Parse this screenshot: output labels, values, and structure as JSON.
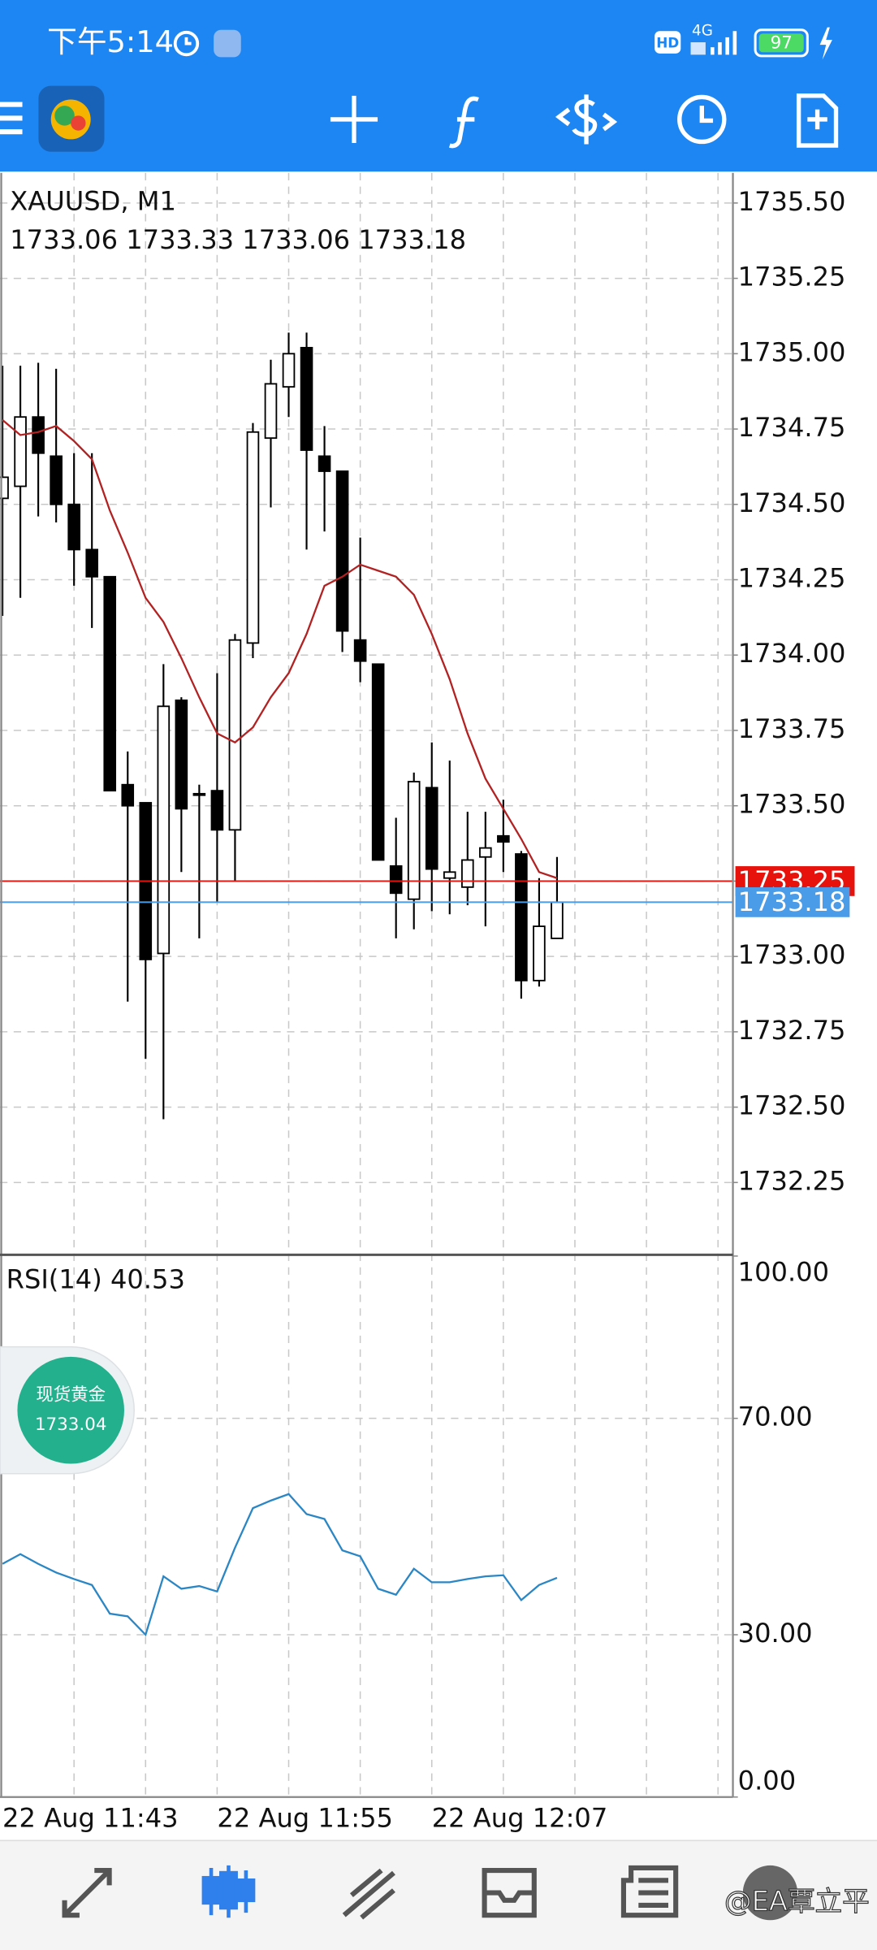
{
  "status_bar": {
    "time": "下午5:14",
    "hd": "HD",
    "network": "4G",
    "battery": 97
  },
  "chart_data": [
    {
      "type": "candlestick",
      "title": "XAUUSD, M1",
      "subtitle": "1733.06 1733.33 1733.06 1733.18",
      "categories": [
        "22 Aug 11:43",
        null,
        null,
        null,
        null,
        null,
        null,
        null,
        null,
        null,
        null,
        null,
        "22 Aug 11:55",
        null,
        null,
        null,
        null,
        null,
        null,
        null,
        null,
        null,
        null,
        null,
        "22 Aug 12:07",
        null,
        null,
        null,
        null,
        null,
        null,
        null
      ],
      "open": [
        1734.52,
        1734.56,
        1734.79,
        1734.66,
        1734.5,
        1734.35,
        1734.26,
        1733.57,
        1733.51,
        1733.01,
        1733.85,
        1733.54,
        1733.55,
        1733.42,
        1734.04,
        1734.72,
        1734.89,
        1735.02,
        1734.66,
        1734.61,
        1734.05,
        1733.97,
        1733.3,
        1733.19,
        1733.56,
        1733.26,
        1733.23,
        1733.33,
        1733.4,
        1733.34,
        1732.92,
        1733.06
      ],
      "high": [
        1734.96,
        1734.96,
        1734.97,
        1734.95,
        1734.67,
        1734.67,
        1734.26,
        1733.68,
        1733.51,
        1733.97,
        1733.86,
        1733.57,
        1733.94,
        1734.07,
        1734.77,
        1734.98,
        1735.07,
        1735.07,
        1734.76,
        1734.61,
        1734.39,
        1733.97,
        1733.46,
        1733.61,
        1733.71,
        1733.65,
        1733.48,
        1733.48,
        1733.52,
        1733.35,
        1733.26,
        1733.33
      ],
      "low": [
        1734.13,
        1734.19,
        1734.46,
        1734.44,
        1734.23,
        1734.09,
        1733.55,
        1732.85,
        1732.66,
        1732.46,
        1733.28,
        1733.06,
        1733.18,
        1733.25,
        1733.99,
        1734.49,
        1734.79,
        1734.35,
        1734.41,
        1734.01,
        1733.91,
        1733.32,
        1733.06,
        1733.09,
        1733.15,
        1733.14,
        1733.17,
        1733.1,
        1733.28,
        1732.86,
        1732.9,
        1733.06
      ],
      "close": [
        1734.59,
        1734.79,
        1734.67,
        1734.5,
        1734.35,
        1734.26,
        1733.55,
        1733.5,
        1732.99,
        1733.83,
        1733.49,
        1733.54,
        1733.42,
        1734.05,
        1734.74,
        1734.9,
        1735.0,
        1734.68,
        1734.61,
        1734.08,
        1733.98,
        1733.32,
        1733.21,
        1733.58,
        1733.29,
        1733.28,
        1733.32,
        1733.36,
        1733.38,
        1732.92,
        1733.1,
        1733.18
      ],
      "up_color": "#ffffff",
      "down_color": "#000000",
      "moving_average": {
        "color": "#b22222",
        "values": [
          1734.78,
          1734.73,
          1734.74,
          1734.76,
          1734.71,
          1734.65,
          1734.48,
          1734.34,
          1734.19,
          1734.11,
          1733.99,
          1733.86,
          1733.74,
          1733.71,
          1733.76,
          1733.86,
          1733.94,
          1734.07,
          1734.23,
          1734.26,
          1734.3,
          1734.28,
          1734.26,
          1734.2,
          1734.07,
          1733.92,
          1733.74,
          1733.59,
          1733.49,
          1733.39,
          1733.28,
          1733.26
        ]
      },
      "price_lines": [
        {
          "value": 1733.25,
          "color": "#e8120c"
        },
        {
          "value": 1733.18,
          "color": "#4a9be8"
        }
      ],
      "ylim": [
        1732.01,
        1735.6
      ],
      "yticks": [
        {
          "value": 1732.25,
          "label": "1732.25"
        },
        {
          "value": 1732.5,
          "label": "1732.50"
        },
        1732.75,
        {
          "value": 1733,
          "label": "1733.00"
        },
        1733.25,
        {
          "value": 1733.5,
          "label": "1733.50"
        },
        1733.75,
        {
          "value": 1734,
          "label": "1734.00"
        },
        1734.25,
        {
          "value": 1734.5,
          "label": "1734.50"
        },
        1734.75,
        {
          "value": 1735,
          "label": "1735.00"
        },
        1735.25,
        {
          "value": 1735.5,
          "label": "1735.50"
        }
      ],
      "grid": true
    },
    {
      "type": "line",
      "title": "RSI(14) 40.53",
      "color": "#2a86c4",
      "values": [
        43.1,
        44.9,
        43.1,
        41.5,
        40.3,
        39.2,
        33.9,
        33.4,
        30.0,
        40.8,
        38.5,
        39.0,
        38.0,
        46.1,
        53.4,
        54.8,
        56.0,
        52.3,
        51.4,
        45.6,
        44.5,
        38.5,
        37.4,
        42.2,
        39.7,
        39.7,
        40.3,
        40.8,
        41.0,
        36.4,
        39.2,
        40.53
      ],
      "ylim": [
        0,
        100
      ],
      "yticks": [
        {
          "value": 0,
          "label": "0.00"
        },
        {
          "value": 30,
          "label": "30.00"
        },
        {
          "value": 70,
          "label": "70.00"
        },
        {
          "value": 100,
          "label": "100.00"
        }
      ],
      "grid": true
    }
  ],
  "badge": {
    "title": "现货黄金",
    "price": 1733.04
  },
  "watermark": "@EA覃立平"
}
